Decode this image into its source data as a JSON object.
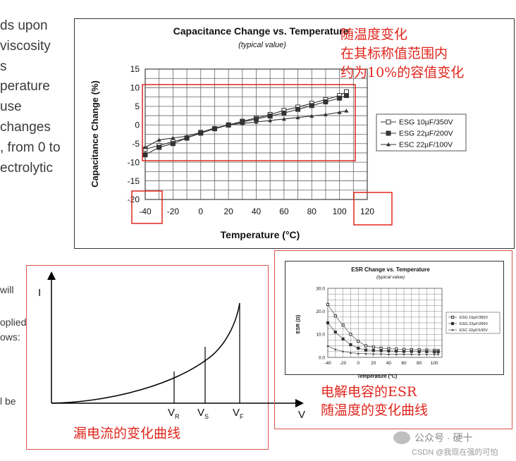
{
  "left_fragments": [
    "ds upon",
    "viscosity",
    "s",
    "perature",
    "use",
    "changes",
    ", from 0 to",
    "ectrolytic"
  ],
  "left_fragments_lower": [
    "will",
    "oplied",
    "ows:",
    "l be"
  ],
  "annotations": {
    "cap_note": [
      "随温度变化",
      "在其标称值范围内",
      "约为10%的容值变化"
    ],
    "esr_note": [
      "电解电容的ESR",
      "随温度的变化曲线"
    ],
    "leak_note": "漏电流的变化曲线"
  },
  "watermark": {
    "line1": "公众号 · 硬十",
    "line2": "CSDN @我现在强的可怕"
  },
  "colors": {
    "red": "#e0261d",
    "grid": "#555555",
    "series_line": "#333333"
  },
  "chart_data": [
    {
      "type": "line",
      "title": "Capacitance Change vs. Temperature",
      "subtitle": "(typical value)",
      "xlabel": "Temperature (°C)",
      "ylabel": "Capacitance Change (%)",
      "xlim": [
        -40,
        120
      ],
      "ylim": [
        -20,
        15
      ],
      "x_ticks": [
        "-40",
        "-20",
        "0",
        "20",
        "40",
        "60",
        "80",
        "100",
        "120"
      ],
      "y_ticks": [
        "15",
        "10",
        "5",
        "0",
        "-5",
        "-10",
        "-15",
        "-20"
      ],
      "grid": true,
      "legend_position": "right",
      "series": [
        {
          "name": "ESG 10µF/350V",
          "marker": "open-square",
          "x": [
            -40,
            -30,
            -20,
            -10,
            0,
            10,
            20,
            30,
            40,
            50,
            60,
            70,
            80,
            90,
            100,
            105
          ],
          "y": [
            -6.5,
            -5.5,
            -4.5,
            -3.5,
            -2,
            -1,
            0,
            1,
            1.9,
            2.8,
            3.9,
            4.8,
            5.8,
            6.8,
            7.9,
            8.9
          ]
        },
        {
          "name": "ESG 22µF/200V",
          "marker": "filled-square",
          "x": [
            -40,
            -30,
            -20,
            -10,
            0,
            10,
            20,
            30,
            40,
            50,
            60,
            70,
            80,
            90,
            100,
            105
          ],
          "y": [
            -8,
            -6,
            -5,
            -3.5,
            -2.2,
            -1,
            0,
            0.8,
            1.6,
            2.4,
            3.2,
            4.2,
            5.2,
            6.2,
            7.2,
            7.9
          ]
        },
        {
          "name": "ESC 22µF/100V",
          "marker": "filled-triangle",
          "x": [
            -40,
            -30,
            -20,
            -10,
            0,
            10,
            20,
            30,
            40,
            50,
            60,
            70,
            80,
            90,
            100,
            105
          ],
          "y": [
            -6,
            -4,
            -3.5,
            -3,
            -2,
            -0.8,
            0,
            0.4,
            0.8,
            1.2,
            1.6,
            2,
            2.4,
            2.8,
            3.4,
            3.8
          ]
        }
      ]
    },
    {
      "type": "line",
      "title": "ESR Change vs. Temperature",
      "subtitle": "(typical value)",
      "xlabel": "Temperature (°C)",
      "ylabel": "ESR (Ω)",
      "xlim": [
        -40,
        110
      ],
      "ylim": [
        0,
        30
      ],
      "x_ticks": [
        "-40",
        "-20",
        "0",
        "20",
        "40",
        "60",
        "80",
        "100"
      ],
      "y_ticks": [
        "30.0",
        "20.0",
        "10.0",
        "0.0"
      ],
      "grid": true,
      "legend_position": "right",
      "series": [
        {
          "name": "ESG 10µF/350V",
          "marker": "open-square",
          "x": [
            -40,
            -30,
            -20,
            -10,
            0,
            10,
            20,
            30,
            40,
            50,
            60,
            70,
            80,
            90,
            100,
            105
          ],
          "y": [
            23,
            18,
            14,
            10,
            7,
            5,
            4.5,
            4,
            3.8,
            3.6,
            3.5,
            3.4,
            3.3,
            3.2,
            3.1,
            3.0
          ]
        },
        {
          "name": "ESG 22µF/200V",
          "marker": "filled-square",
          "x": [
            -40,
            -30,
            -20,
            -10,
            0,
            10,
            20,
            30,
            40,
            50,
            60,
            70,
            80,
            90,
            100,
            105
          ],
          "y": [
            15,
            11,
            8,
            5.5,
            4,
            3.2,
            3,
            2.9,
            2.8,
            2.7,
            2.6,
            2.6,
            2.5,
            2.5,
            2.4,
            2.4
          ]
        },
        {
          "name": "ESC 22µF/100V",
          "marker": "filled-triangle",
          "x": [
            -40,
            -30,
            -20,
            -10,
            0,
            10,
            20,
            30,
            40,
            50,
            60,
            70,
            80,
            90,
            100,
            105
          ],
          "y": [
            5,
            3.5,
            2.6,
            2,
            1.7,
            1.6,
            1.5,
            1.5,
            1.4,
            1.4,
            1.4,
            1.4,
            1.3,
            1.3,
            1.3,
            1.3
          ]
        }
      ]
    },
    {
      "type": "line",
      "xlabel": "V",
      "ylabel": "I",
      "x_ticks": [
        "VR",
        "VS",
        "VF"
      ],
      "curve": "exponential leakage current vs voltage",
      "markers": [
        {
          "label": "V",
          "sub": "R",
          "x": 0.65,
          "y": 0.22
        },
        {
          "label": "V",
          "sub": "S",
          "x": 0.81,
          "y": 0.41
        },
        {
          "label": "V",
          "sub": "F",
          "x": 1.0,
          "y": 1.0
        }
      ]
    }
  ]
}
